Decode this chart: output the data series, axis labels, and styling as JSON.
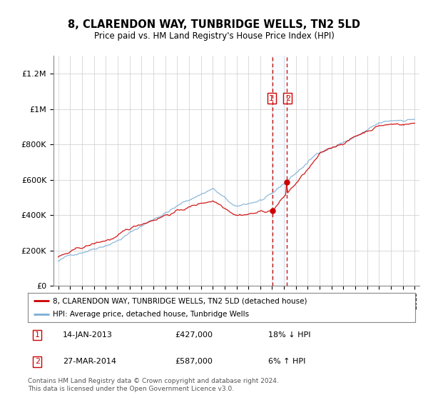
{
  "title": "8, CLARENDON WAY, TUNBRIDGE WELLS, TN2 5LD",
  "subtitle": "Price paid vs. HM Land Registry's House Price Index (HPI)",
  "red_line_label": "8, CLARENDON WAY, TUNBRIDGE WELLS, TN2 5LD (detached house)",
  "blue_line_label": "HPI: Average price, detached house, Tunbridge Wells",
  "transaction1_date": "14-JAN-2013",
  "transaction1_price": "£427,000",
  "transaction1_hpi": "18% ↓ HPI",
  "transaction2_date": "27-MAR-2014",
  "transaction2_price": "£587,000",
  "transaction2_hpi": "6% ↑ HPI",
  "footer": "Contains HM Land Registry data © Crown copyright and database right 2024.\nThis data is licensed under the Open Government Licence v3.0.",
  "ylim": [
    0,
    1300000
  ],
  "yticks": [
    0,
    200000,
    400000,
    600000,
    800000,
    1000000,
    1200000
  ],
  "ytick_labels": [
    "£0",
    "£200K",
    "£400K",
    "£600K",
    "£800K",
    "£1M",
    "£1.2M"
  ],
  "red_color": "#cc0000",
  "blue_color": "#7aadd4",
  "marker1_x": 2013.04,
  "marker1_y": 427000,
  "marker2_x": 2014.24,
  "marker2_y": 587000,
  "background_color": "#ffffff",
  "plot_bg_color": "#ffffff",
  "grid_color": "#cccccc",
  "shade_color": "#ddeeff",
  "xmin": 1995,
  "xmax": 2025
}
